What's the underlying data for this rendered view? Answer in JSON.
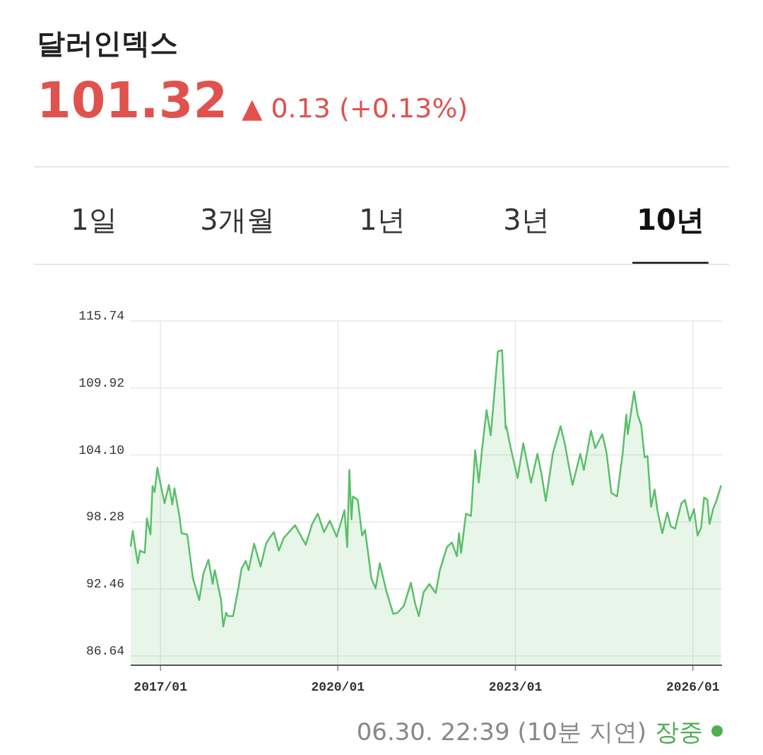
{
  "chart_data": {
    "type": "area",
    "title": "달러인덱스",
    "subtitle": "101.32",
    "annotations": [
      "▲ 0.13 (+0.13%)",
      "1일",
      "3개월",
      "1년",
      "3년",
      "10년",
      "06.30. 22:39 (10분 지연)",
      "장중"
    ],
    "xlim": [
      "2016-07-01",
      "2026-06-30"
    ],
    "xticks": [
      {
        "value": "2017-01",
        "label": "2017/01"
      },
      {
        "value": "2020-01",
        "label": "2020/01"
      },
      {
        "value": "2023-01",
        "label": "2023/01"
      },
      {
        "value": "2026-01",
        "label": "2026/01"
      }
    ],
    "ylim": [
      85.84,
      115.74
    ],
    "yticks": [
      86.64,
      92.46,
      98.28,
      {
        "value": 104.1,
        "label": "104.10"
      },
      109.92,
      115.74
    ],
    "grid": true,
    "series": [
      {
        "color": "#5bbf6a",
        "x": [
          "2016-07-01",
          "2016-07-14",
          "2016-08-01",
          "2016-08-14",
          "2016-08-27",
          "2016-09-26",
          "2016-10-09",
          "2016-10-31",
          "2016-11-13",
          "2016-11-26",
          "2016-12-13",
          "2016-12-22",
          "2017-01-26",
          "2017-02-22",
          "2017-03-15",
          "2017-03-28",
          "2017-04-28",
          "2017-05-11",
          "2017-06-15",
          "2017-06-28",
          "2017-07-20",
          "2017-08-28",
          "2017-09-23",
          "2017-10-24",
          "2017-11-19",
          "2017-12-02",
          "2018-01-10",
          "2018-01-23",
          "2018-02-10",
          "2018-02-23",
          "2018-03-25",
          "2018-04-29",
          "2018-05-16",
          "2018-06-11",
          "2018-06-29",
          "2018-08-02",
          "2018-08-24",
          "2018-09-11",
          "2018-10-15",
          "2018-11-06",
          "2018-12-02",
          "2019-01-02",
          "2019-02-01",
          "2019-02-27",
          "2019-04-12",
          "2019-06-17",
          "2019-07-26",
          "2019-08-30",
          "2019-10-08",
          "2019-11-12",
          "2019-12-25",
          "2020-02-11",
          "2020-02-28",
          "2020-03-12",
          "2020-03-25",
          "2020-04-03",
          "2020-05-03",
          "2020-05-30",
          "2020-06-17",
          "2020-07-26",
          "2020-08-21",
          "2020-09-16",
          "2020-10-26",
          "2020-12-08",
          "2021-01-04",
          "2021-02-12",
          "2021-03-27",
          "2021-04-22",
          "2021-05-15",
          "2021-06-14",
          "2021-07-19",
          "2021-08-27",
          "2021-09-22",
          "2021-11-05",
          "2021-12-05",
          "2022-01-05",
          "2022-01-18",
          "2022-01-31",
          "2022-03-02",
          "2022-04-02",
          "2022-04-28",
          "2022-05-20",
          "2022-06-11",
          "2022-07-07",
          "2022-08-02",
          "2022-08-24",
          "2022-09-15",
          "2022-10-11",
          "2022-11-02",
          "2022-11-06",
          "2022-12-02",
          "2023-01-15",
          "2023-02-19",
          "2023-04-08",
          "2023-05-17",
          "2023-06-12",
          "2023-07-08",
          "2023-08-20",
          "2023-10-07",
          "2023-11-02",
          "2023-11-24",
          "2023-12-20",
          "2024-02-06",
          "2024-02-28",
          "2024-04-12",
          "2024-05-08",
          "2024-06-21",
          "2024-07-17",
          "2024-08-16",
          "2024-09-20",
          "2024-10-25",
          "2024-11-16",
          "2024-11-25",
          "2025-01-03",
          "2025-01-25",
          "2025-02-16",
          "2025-03-09",
          "2025-03-27",
          "2025-04-18",
          "2025-05-10",
          "2025-05-27",
          "2025-06-26",
          "2025-07-27",
          "2025-08-18",
          "2025-09-13",
          "2025-10-22",
          "2025-11-13",
          "2025-12-13",
          "2026-01-08",
          "2026-01-30",
          "2026-02-21",
          "2026-03-11",
          "2026-04-01",
          "2026-04-14",
          "2026-05-06",
          "2026-05-28",
          "2026-06-23"
        ],
        "values": [
          96.2,
          97.5,
          95.8,
          94.7,
          95.8,
          95.6,
          98.6,
          97.2,
          101.4,
          100.9,
          103.0,
          102.3,
          99.9,
          101.5,
          99.8,
          101.2,
          98.8,
          97.3,
          97.2,
          95.8,
          93.4,
          91.5,
          93.8,
          95.0,
          92.9,
          94.1,
          91.5,
          89.2,
          90.4,
          90.1,
          90.1,
          92.7,
          94.2,
          94.9,
          94.1,
          96.4,
          95.3,
          94.4,
          96.4,
          96.9,
          97.4,
          95.8,
          96.9,
          97.3,
          98.0,
          96.3,
          98.1,
          99.0,
          97.4,
          98.4,
          97.0,
          99.3,
          96.1,
          102.8,
          98.5,
          100.5,
          100.2,
          97.1,
          97.6,
          93.4,
          92.5,
          94.7,
          92.3,
          90.3,
          90.4,
          91.0,
          93.0,
          91.2,
          90.1,
          92.2,
          92.9,
          92.1,
          94.1,
          96.1,
          96.5,
          95.3,
          97.3,
          95.6,
          99.0,
          98.8,
          104.5,
          101.7,
          104.8,
          108.0,
          105.8,
          109.4,
          113.1,
          113.2,
          106.4,
          106.6,
          104.8,
          102.1,
          105.1,
          101.7,
          104.2,
          102.4,
          100.1,
          104.2,
          106.6,
          105.1,
          103.4,
          101.5,
          104.2,
          102.8,
          106.2,
          104.7,
          105.9,
          104.3,
          100.8,
          100.5,
          104.3,
          107.6,
          105.9,
          109.6,
          107.6,
          106.7,
          103.9,
          104.0,
          99.6,
          101.1,
          99.3,
          97.3,
          99.1,
          97.9,
          97.7,
          99.9,
          100.2,
          98.4,
          99.4,
          97.1,
          97.8,
          100.4,
          100.2,
          98.1,
          99.4,
          100.2,
          101.4
        ]
      }
    ]
  }
}
